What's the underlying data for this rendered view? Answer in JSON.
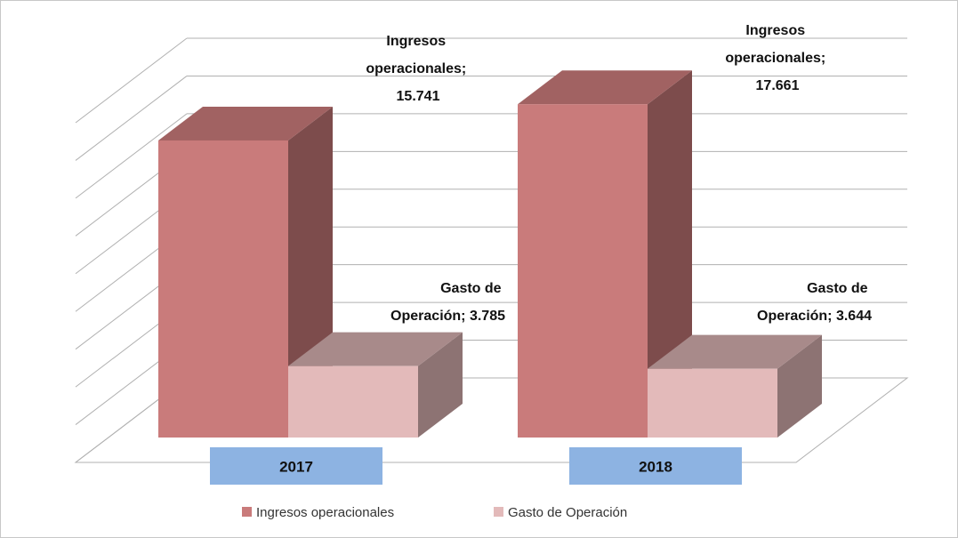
{
  "chart_data": {
    "type": "bar3d",
    "categories": [
      "2017",
      "2018"
    ],
    "series": [
      {
        "name": "Ingresos operacionales",
        "color": "#c97b7b",
        "values": [
          15741,
          17661
        ],
        "value_labels": [
          "Ingresos operacionales; 15.741",
          "Ingresos operacionales; 17.661"
        ]
      },
      {
        "name": "Gasto de Operación",
        "color": "#e3baba",
        "values": [
          3785,
          3644
        ],
        "value_labels": [
          "Gasto de Operación; 3.785",
          "Gasto de Operación; 3.644"
        ]
      }
    ],
    "ylim": [
      0,
      18000
    ],
    "yticks": [
      0,
      2000,
      4000,
      6000,
      8000,
      10000,
      12000,
      14000,
      16000,
      18000
    ],
    "grid": true,
    "legend": "bottom"
  }
}
